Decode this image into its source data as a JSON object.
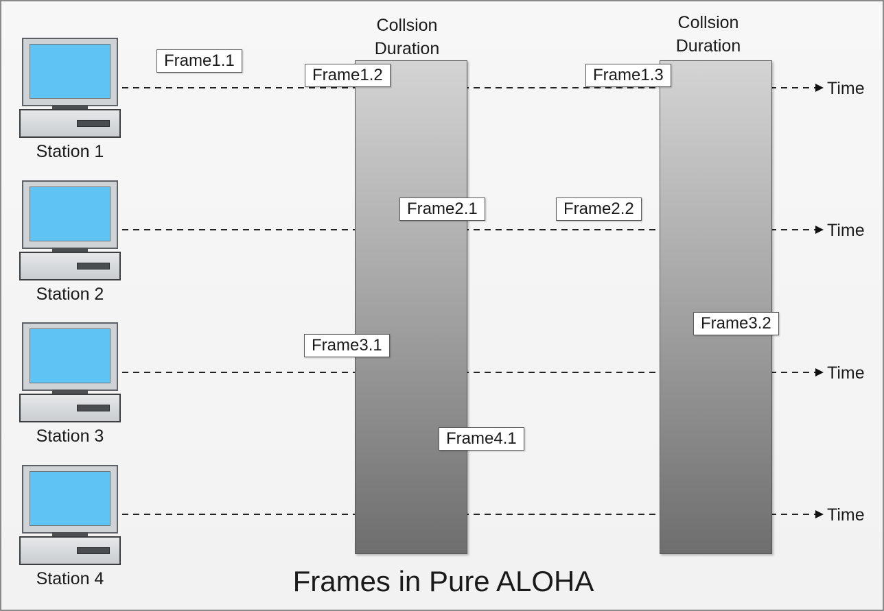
{
  "title": "Frames in Pure ALOHA",
  "stations": [
    {
      "label": "Station 1"
    },
    {
      "label": "Station 2"
    },
    {
      "label": "Station 3"
    },
    {
      "label": "Station 4"
    }
  ],
  "time_label": "Time",
  "collisions": [
    {
      "line1": "Collsion",
      "line2": "Duration"
    },
    {
      "line1": "Collsion",
      "line2": "Duration"
    }
  ],
  "frames": [
    {
      "label": "Frame1.1",
      "station": "Station 1"
    },
    {
      "label": "Frame1.2",
      "station": "Station 1"
    },
    {
      "label": "Frame1.3",
      "station": "Station 1"
    },
    {
      "label": "Frame2.1",
      "station": "Station 2"
    },
    {
      "label": "Frame2.2",
      "station": "Station 2"
    },
    {
      "label": "Frame3.1",
      "station": "Station 3"
    },
    {
      "label": "Frame3.2",
      "station": "Station 3"
    },
    {
      "label": "Frame4.1",
      "station": "Station 4"
    }
  ],
  "colors": {
    "screen": "#5fc3f4",
    "collision_top": "#d4d4d4",
    "collision_bottom": "#6e6e6e"
  }
}
